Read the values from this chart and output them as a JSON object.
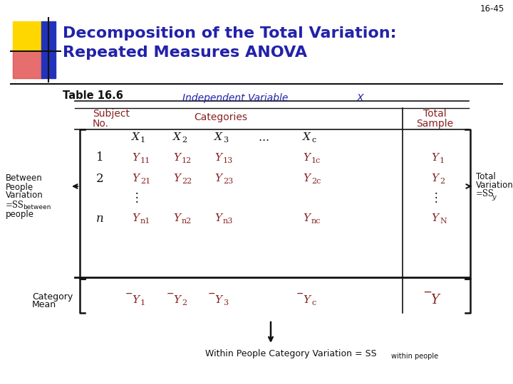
{
  "title_line1": "Decomposition of the Total Variation:",
  "title_line2": "Repeated Measures ANOVA",
  "page_num": "16-45",
  "table_title": "Table 16.6",
  "title_color": "#2222CC",
  "red_color": "#882222",
  "black_color": "#111111",
  "blue_color": "#2222AA",
  "bg_color": "#FFFFFF",
  "yellow_color": "#FFD700",
  "crimson_color": "#CC3333",
  "navy_color": "#2233BB"
}
